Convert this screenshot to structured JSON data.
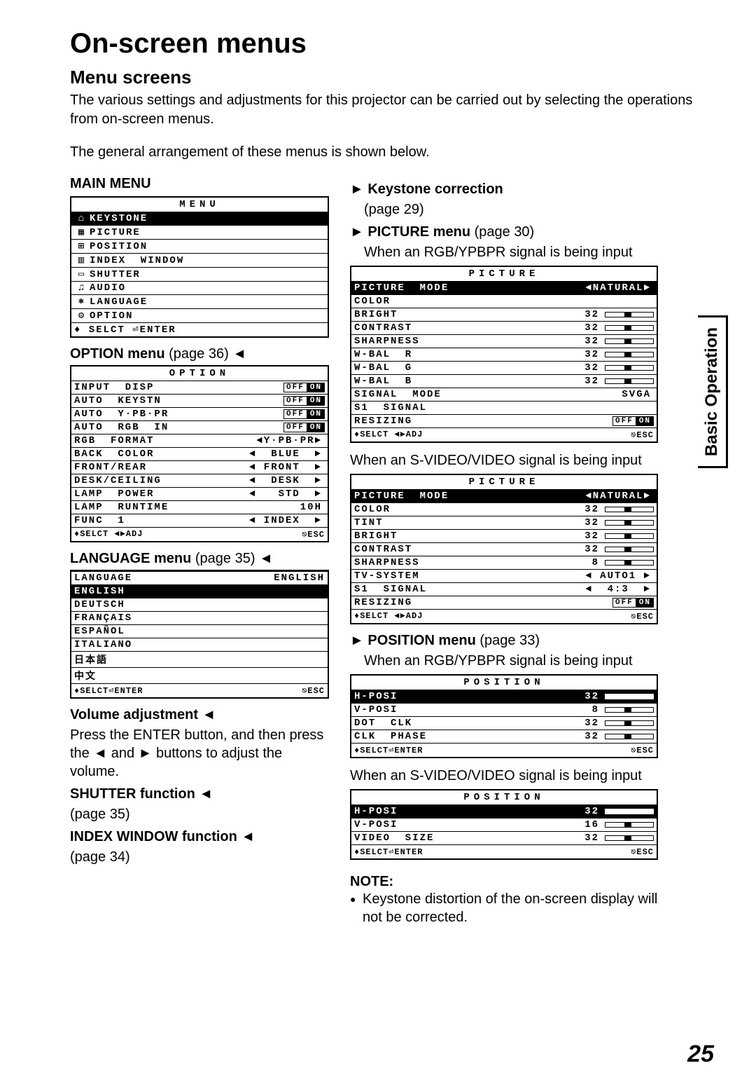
{
  "page": {
    "title": "On-screen menus",
    "subtitle": "Menu screens",
    "intro1": "The various settings and adjustments for this projector can be carried out by selecting the operations from on-screen menus.",
    "intro2": "The general arrangement of these menus is shown below.",
    "main_menu_label": "MAIN MENU",
    "side_tab": "Basic Operation",
    "page_number": "25"
  },
  "main_menu": {
    "header": "MENU",
    "items": [
      {
        "icon": "⌂",
        "label": "KEYSTONE",
        "highlighted": true
      },
      {
        "icon": "▦",
        "label": "PICTURE"
      },
      {
        "icon": "⊞",
        "label": "POSITION"
      },
      {
        "icon": "▥",
        "label": "INDEX  WINDOW"
      },
      {
        "icon": "▭",
        "label": "SHUTTER"
      },
      {
        "icon": "♫",
        "label": "AUDIO"
      },
      {
        "icon": "⎈",
        "label": "LANGUAGE"
      },
      {
        "icon": "⚙",
        "label": "OPTION"
      }
    ],
    "footer": "♦ SELCT ⏎ENTER"
  },
  "left_sections": {
    "option": {
      "title_bold": "OPTION menu",
      "title_rest": " (page 36)",
      "header": "OPTION",
      "rows": [
        {
          "label": "INPUT  DISP",
          "toggle_off": "OFF",
          "toggle_on": "ON"
        },
        {
          "label": "AUTO  KEYSTN",
          "toggle_off": "OFF",
          "toggle_on": "ON"
        },
        {
          "label": "AUTO  Y·PB·PR",
          "toggle_off": "OFF",
          "toggle_on": "ON"
        },
        {
          "label": "AUTO  RGB  IN",
          "toggle_off": "OFF",
          "toggle_on": "ON"
        },
        {
          "label": "RGB  FORMAT",
          "val": "◄Y·PB·PR►"
        },
        {
          "label": "BACK  COLOR",
          "val": "◄  BLUE  ►"
        },
        {
          "label": "FRONT/REAR",
          "val": "◄ FRONT  ►"
        },
        {
          "label": "DESK/CEILING",
          "val": "◄  DESK  ►"
        },
        {
          "label": "LAMP  POWER",
          "val": "◄   STD  ►"
        },
        {
          "label": "LAMP  RUNTIME",
          "val": "10H"
        },
        {
          "label": "FUNC  1",
          "val": "◄ INDEX  ►"
        }
      ],
      "footer_l": "♦SELCT ◄►ADJ",
      "footer_r": "⎋ESC"
    },
    "language": {
      "title_bold": "LANGUAGE menu",
      "title_rest": " (page 35)",
      "header_l": "LANGUAGE",
      "header_r": "ENGLISH",
      "items": [
        "ENGLISH",
        "DEUTSCH",
        "FRANÇAIS",
        "ESPAÑOL",
        "ITALIANO",
        "日本語",
        "中文"
      ],
      "footer_l": "♦SELCT⏎ENTER",
      "footer_r": "⎋ESC"
    },
    "volume": {
      "title_bold": "Volume adjustment",
      "body": "Press the ENTER button, and then press the ◄ and ► buttons to adjust the volume."
    },
    "shutter": {
      "title_bold": "SHUTTER function",
      "body": "(page 35)"
    },
    "index": {
      "title_bold": "INDEX WINDOW function",
      "body": "(page 34)"
    }
  },
  "right_sections": {
    "keystone": {
      "title_bold": "Keystone correction",
      "body": "(page 29)"
    },
    "picture": {
      "title_bold": "PICTURE menu",
      "title_rest": " (page 30)",
      "cond1": "When an RGB/YPBPR signal is being input",
      "menu1": {
        "header": "PICTURE",
        "rows": [
          {
            "label": "PICTURE  MODE",
            "val": "◄NATURAL►",
            "hl": true
          },
          {
            "label": "COLOR",
            "val": ""
          },
          {
            "label": "BRIGHT",
            "val": "32",
            "slider": true
          },
          {
            "label": "CONTRAST",
            "val": "32",
            "slider": true
          },
          {
            "label": "SHARPNESS",
            "val": "32",
            "slider": true
          },
          {
            "label": "W-BAL  R",
            "val": "32",
            "slider": true
          },
          {
            "label": "W-BAL  G",
            "val": "32",
            "slider": true
          },
          {
            "label": "W-BAL  B",
            "val": "32",
            "slider": true
          },
          {
            "label": "SIGNAL  MODE",
            "val": "SVGA"
          },
          {
            "label": "S1  SIGNAL",
            "val": ""
          },
          {
            "label": "RESIZING",
            "toggle_off": "OFF",
            "toggle_on": "ON"
          }
        ],
        "footer_l": "♦SELCT ◄►ADJ",
        "footer_r": "⎋ESC"
      },
      "cond2": "When an S-VIDEO/VIDEO signal is being input",
      "menu2": {
        "header": "PICTURE",
        "rows": [
          {
            "label": "PICTURE  MODE",
            "val": "◄NATURAL►",
            "hl": true
          },
          {
            "label": "COLOR",
            "val": "32",
            "slider": true
          },
          {
            "label": "TINT",
            "val": "32",
            "slider": true
          },
          {
            "label": "BRIGHT",
            "val": "32",
            "slider": true
          },
          {
            "label": "CONTRAST",
            "val": "32",
            "slider": true
          },
          {
            "label": "SHARPNESS",
            "val": "8",
            "slider": true
          },
          {
            "label": "TV-SYSTEM",
            "val": "◄ AUTO1 ►"
          },
          {
            "label": "S1  SIGNAL",
            "val": "◄  4:3  ►"
          },
          {
            "label": "RESIZING",
            "toggle_off": "OFF",
            "toggle_on": "ON"
          }
        ],
        "footer_l": "♦SELCT ◄►ADJ",
        "footer_r": "⎋ESC"
      }
    },
    "position": {
      "title_bold": "POSITION menu",
      "title_rest": " (page 33)",
      "cond1": "When an RGB/YPBPR signal is being input",
      "menu1": {
        "header": "POSITION",
        "rows": [
          {
            "label": "H-POSI",
            "val": "32",
            "slider": true,
            "hl": true
          },
          {
            "label": "V-POSI",
            "val": "8",
            "slider": true
          },
          {
            "label": "DOT  CLK",
            "val": "32",
            "slider": true
          },
          {
            "label": "CLK  PHASE",
            "val": "32",
            "slider": true
          }
        ],
        "footer_l": "♦SELCT⏎ENTER",
        "footer_r": "⎋ESC"
      },
      "cond2": "When an S-VIDEO/VIDEO signal is being input",
      "menu2": {
        "header": "POSITION",
        "rows": [
          {
            "label": "H-POSI",
            "val": "32",
            "slider": true,
            "hl": true
          },
          {
            "label": "V-POSI",
            "val": "16",
            "slider": true
          },
          {
            "label": "VIDEO  SIZE",
            "val": "32",
            "slider": true
          }
        ],
        "footer_l": "♦SELCT⏎ENTER",
        "footer_r": "⎋ESC"
      }
    },
    "note": {
      "label": "NOTE:",
      "body": "Keystone distortion of the on-screen display will not be corrected."
    }
  }
}
